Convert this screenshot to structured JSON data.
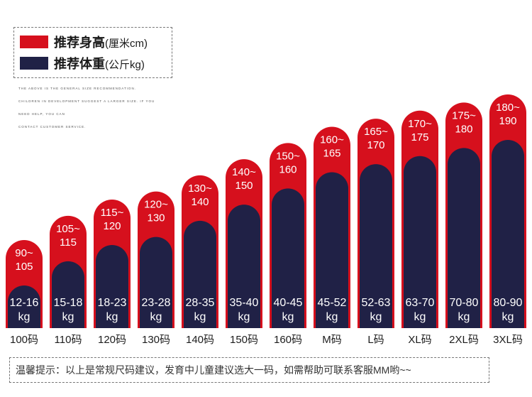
{
  "legend": {
    "height": {
      "main": "推荐身高",
      "unit": "(厘米cm)",
      "color": "#d6101d"
    },
    "weight": {
      "main": "推荐体重",
      "unit": "(公斤kg)",
      "color": "#202146"
    }
  },
  "note_lines": [
    "THE ABOVE IS THE GENERAL SIZE RECOMMENDATION.",
    "CHILDREN IN DEVELOPMENT SUGGEST A LARGER SIZE. IF YOU",
    "NEED HELP, YOU CAN",
    "CONTACT CUSTOMER SERVICE."
  ],
  "chart_data": {
    "type": "bar",
    "title": "",
    "categories": [
      "100码",
      "110码",
      "120码",
      "130码",
      "140码",
      "150码",
      "160码",
      "M码",
      "L码",
      "XL码",
      "2XL码",
      "3XL码"
    ],
    "series": [
      {
        "name": "推荐身高(厘米cm)",
        "color": "#d6101d",
        "labels": [
          "90~105",
          "105~115",
          "115~120",
          "120~130",
          "130~140",
          "140~150",
          "150~160",
          "160~165",
          "165~170",
          "170~175",
          "175~180",
          "180~190"
        ],
        "low": [
          90,
          105,
          115,
          120,
          130,
          140,
          150,
          160,
          165,
          170,
          175,
          180
        ],
        "high": [
          105,
          115,
          120,
          130,
          140,
          150,
          160,
          165,
          170,
          175,
          180,
          190
        ]
      },
      {
        "name": "推荐体重(公斤kg)",
        "color": "#202146",
        "labels": [
          "12-16",
          "15-18",
          "18-23",
          "23-28",
          "28-35",
          "35-40",
          "40-45",
          "45-52",
          "52-63",
          "63-70",
          "70-80",
          "80-90"
        ],
        "unit": "kg",
        "low": [
          12,
          15,
          18,
          23,
          28,
          35,
          40,
          45,
          52,
          63,
          70,
          80
        ],
        "high": [
          16,
          18,
          23,
          28,
          35,
          40,
          45,
          52,
          63,
          70,
          80,
          90
        ]
      }
    ],
    "xlabel": "",
    "ylabel": "",
    "grid": false,
    "legend_position": "top-left"
  },
  "footer": {
    "text": "温馨提示：以上是常规尺码建议，发育中儿童建议选大一码，如需帮助可联系客服MM哟~~"
  }
}
